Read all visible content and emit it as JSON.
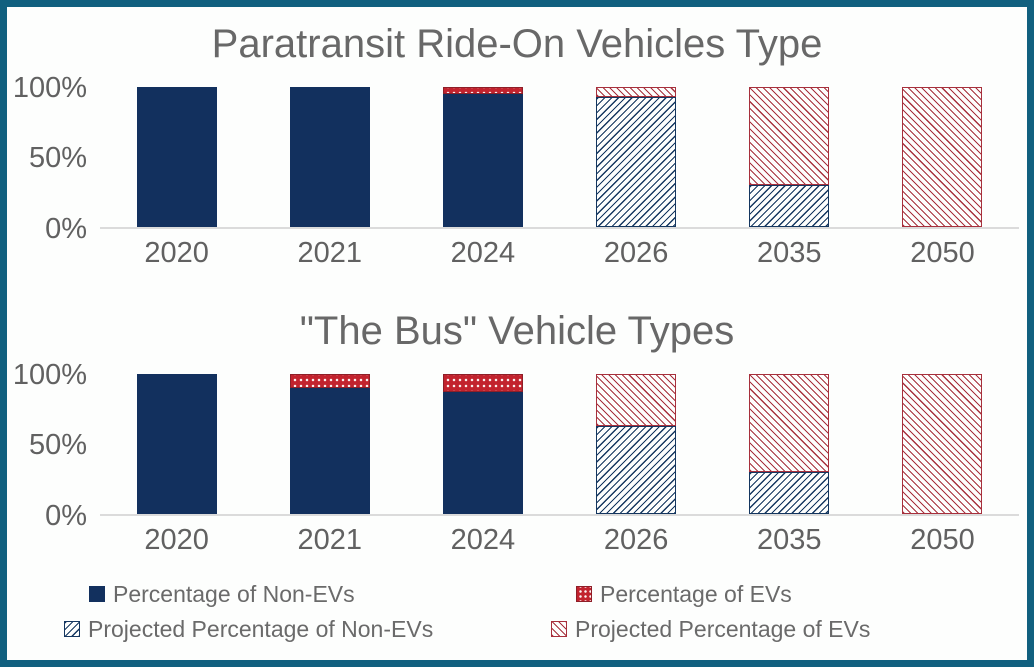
{
  "colors": {
    "frame_border": "#11607F",
    "non_ev_fill": "#12305E",
    "ev_fill": "#C2232E",
    "ev_border": "#8E1F28",
    "proj_non_ev_line": "#14365F",
    "proj_ev_line": "#A7303C",
    "title_text": "#686868",
    "axis_text": "#616161",
    "axis_line": "#DBDBDB"
  },
  "chart_data": [
    {
      "type": "bar",
      "stacked": true,
      "title": "Paratransit Ride-On Vehicles Type",
      "categories": [
        "2020",
        "2021",
        "2024",
        "2026",
        "2035",
        "2050"
      ],
      "y_ticks": [
        "100%",
        "50%",
        "0%"
      ],
      "ylim": [
        0,
        100
      ],
      "grid": false,
      "series": [
        {
          "name": "Percentage of Non-EVs",
          "key": "non_ev",
          "values": [
            100,
            100,
            95,
            0,
            0,
            0
          ]
        },
        {
          "name": "Percentage of EVs",
          "key": "ev",
          "values": [
            0,
            0,
            5,
            0,
            0,
            0
          ]
        },
        {
          "name": "Projected Percentage of Non-EVs",
          "key": "proj_non_ev",
          "values": [
            0,
            0,
            0,
            93,
            30,
            0
          ]
        },
        {
          "name": "Projected Percentage of EVs",
          "key": "proj_ev",
          "values": [
            0,
            0,
            0,
            7,
            70,
            100
          ]
        }
      ]
    },
    {
      "type": "bar",
      "stacked": true,
      "title": "\"The Bus\" Vehicle Types",
      "categories": [
        "2020",
        "2021",
        "2024",
        "2026",
        "2035",
        "2050"
      ],
      "y_ticks": [
        "100%",
        "50%",
        "0%"
      ],
      "ylim": [
        0,
        100
      ],
      "grid": false,
      "series": [
        {
          "name": "Percentage of Non-EVs",
          "key": "non_ev",
          "values": [
            100,
            90,
            87,
            0,
            0,
            0
          ]
        },
        {
          "name": "Percentage of EVs",
          "key": "ev",
          "values": [
            0,
            10,
            13,
            0,
            0,
            0
          ]
        },
        {
          "name": "Projected Percentage of Non-EVs",
          "key": "proj_non_ev",
          "values": [
            0,
            0,
            0,
            63,
            30,
            0
          ]
        },
        {
          "name": "Projected Percentage of EVs",
          "key": "proj_ev",
          "values": [
            0,
            0,
            0,
            37,
            70,
            100
          ]
        }
      ]
    }
  ],
  "legend": {
    "items": [
      {
        "label": "Percentage of Non-EVs",
        "swatch": "non_ev"
      },
      {
        "label": "Percentage of EVs",
        "swatch": "ev"
      },
      {
        "label": "Projected Percentage of Non-EVs",
        "swatch": "proj_non_ev"
      },
      {
        "label": "Projected Percentage of EVs",
        "swatch": "proj_ev"
      }
    ]
  }
}
